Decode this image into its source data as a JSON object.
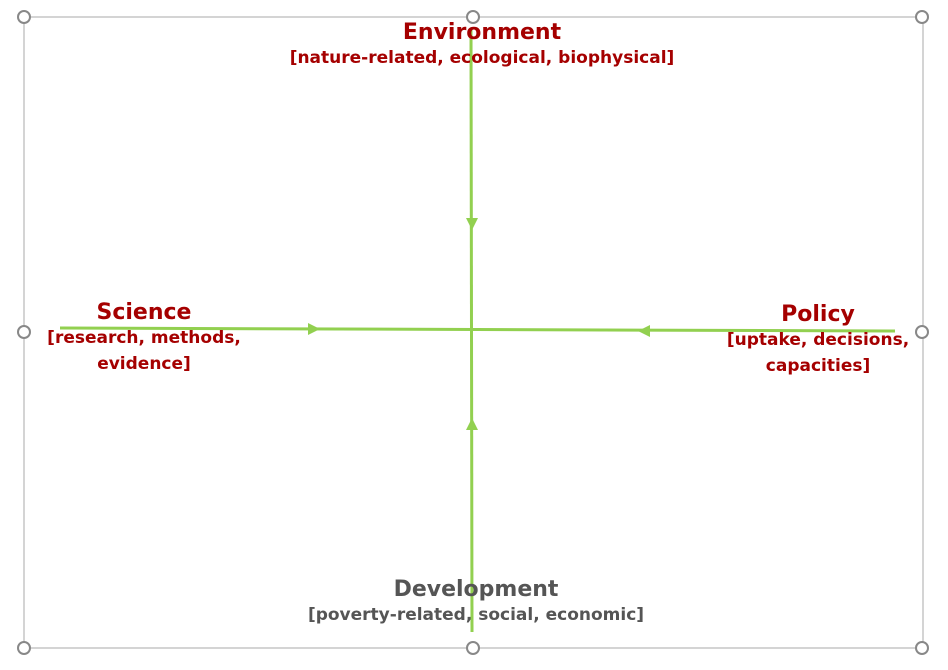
{
  "nodes": [
    {
      "label": "Environment",
      "sublabel": "[nature-related, ecological, biophysical]"
    },
    {
      "label": "Science",
      "sublabel": "[research, methods, evidence]"
    },
    {
      "label": "Policy",
      "sublabel": "[uptake, decisions, capacities]"
    },
    {
      "label": "Development",
      "sublabel": "[poverty-related, social, economic]"
    }
  ]
}
